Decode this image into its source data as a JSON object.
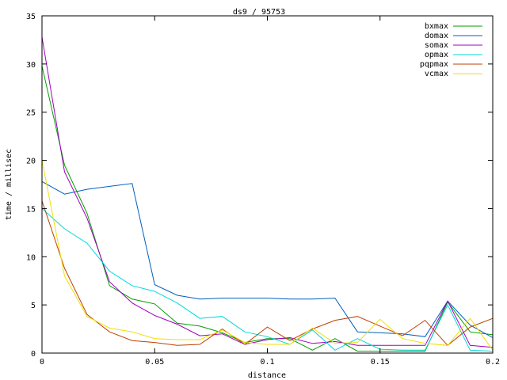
{
  "chart_data": {
    "type": "line",
    "title": "ds9 / 95753",
    "xlabel": "distance",
    "ylabel": "time / millisec",
    "xlim": [
      0,
      0.2
    ],
    "ylim": [
      0,
      35
    ],
    "x_ticks": [
      0,
      0.05,
      0.1,
      0.15,
      0.2
    ],
    "x_tick_labels": [
      "0",
      "0.05",
      "0.1",
      "0.15",
      "0.2"
    ],
    "y_ticks": [
      0,
      5,
      10,
      15,
      20,
      25,
      30,
      35
    ],
    "y_tick_labels": [
      "0",
      "5",
      "10",
      "15",
      "20",
      "25",
      "30",
      "35"
    ],
    "grid": false,
    "legend_position": "top-right",
    "x": [
      0,
      0.01,
      0.02,
      0.03,
      0.04,
      0.05,
      0.06,
      0.07,
      0.08,
      0.09,
      0.1,
      0.11,
      0.12,
      0.13,
      0.14,
      0.15,
      0.16,
      0.17,
      0.18,
      0.19,
      0.2
    ],
    "series": [
      {
        "name": "bxmax",
        "color": "#00a000",
        "values": [
          29.8,
          19.5,
          14.5,
          7.0,
          5.6,
          5.1,
          3.1,
          2.8,
          2.1,
          1.1,
          1.5,
          1.5,
          0.3,
          1.5,
          0.2,
          0.2,
          0.2,
          0.2,
          5.3,
          2.2,
          1.9
        ]
      },
      {
        "name": "domax",
        "color": "#0060c0",
        "values": [
          17.8,
          16.5,
          17.0,
          17.3,
          17.6,
          7.1,
          6.0,
          5.6,
          5.7,
          5.7,
          5.7,
          5.6,
          5.6,
          5.7,
          2.2,
          2.1,
          2.0,
          1.7,
          5.4,
          2.9,
          1.6
        ]
      },
      {
        "name": "somax",
        "color": "#a000c0",
        "values": [
          32.8,
          18.8,
          14.0,
          7.4,
          5.2,
          3.9,
          3.0,
          1.8,
          2.0,
          0.9,
          1.4,
          1.6,
          1.0,
          1.2,
          0.8,
          0.8,
          0.8,
          0.8,
          5.4,
          0.8,
          0.6
        ]
      },
      {
        "name": "opmax",
        "color": "#00d8d8",
        "values": [
          15.0,
          12.9,
          11.4,
          8.5,
          7.0,
          6.4,
          5.2,
          3.6,
          3.8,
          2.2,
          1.7,
          0.9,
          2.4,
          0.3,
          1.5,
          0.4,
          0.3,
          0.3,
          5.0,
          0.3,
          0.2
        ]
      },
      {
        "name": "pqpmax",
        "color": "#c04000",
        "values": [
          15.8,
          8.8,
          4.0,
          2.2,
          1.3,
          1.1,
          0.8,
          0.9,
          2.5,
          0.9,
          2.7,
          1.3,
          2.5,
          3.4,
          3.8,
          2.8,
          1.8,
          3.4,
          0.8,
          2.7,
          3.6
        ]
      },
      {
        "name": "vcmax",
        "color": "#f0e000",
        "values": [
          20.0,
          8.0,
          3.8,
          2.6,
          2.2,
          1.5,
          1.4,
          1.4,
          2.4,
          1.1,
          0.9,
          0.9,
          2.6,
          1.0,
          1.1,
          3.5,
          1.5,
          1.0,
          0.8,
          3.6,
          0.3
        ]
      }
    ]
  }
}
